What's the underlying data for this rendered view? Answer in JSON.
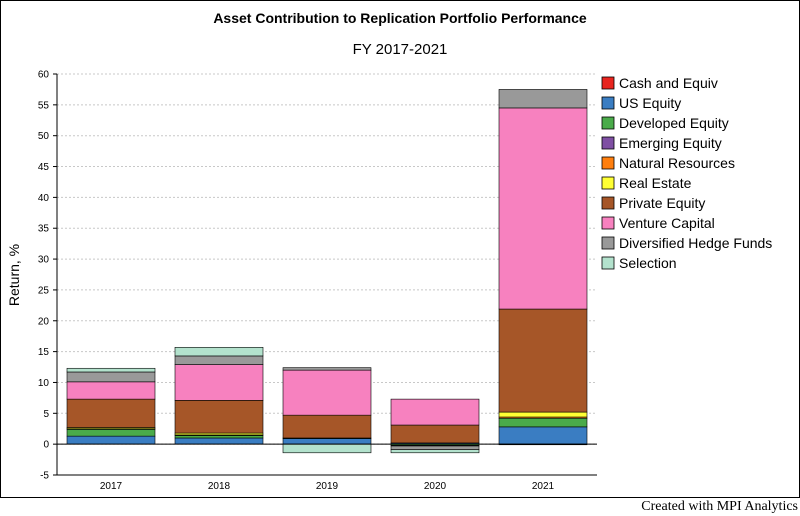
{
  "chart_data": {
    "type": "bar",
    "stacked": true,
    "title": "Asset Contribution to Replication Portfolio Performance",
    "subtitle": "FY 2017-2021",
    "xlabel": "",
    "ylabel": "Return, %",
    "ylim": [
      -5,
      60
    ],
    "yticks": [
      -5,
      0,
      5,
      10,
      15,
      20,
      25,
      30,
      35,
      40,
      45,
      50,
      55,
      60
    ],
    "grid": true,
    "legend_position": "right",
    "categories": [
      "2017",
      "2018",
      "2019",
      "2020",
      "2021"
    ],
    "series": [
      {
        "name": "Cash and Equiv",
        "color": "#e8251f",
        "values": [
          0,
          0,
          0,
          0,
          0
        ]
      },
      {
        "name": "US Equity",
        "color": "#3a7dc2",
        "values": [
          1.3,
          1.0,
          0.9,
          0.2,
          2.8
        ]
      },
      {
        "name": "Developed Equity",
        "color": "#4aab4a",
        "values": [
          1.1,
          0.4,
          0.1,
          -0.2,
          1.4
        ]
      },
      {
        "name": "Emerging Equity",
        "color": "#7f4fa3",
        "values": [
          0,
          0,
          0,
          -0.1,
          0
        ]
      },
      {
        "name": "Natural Resources",
        "color": "#ff7f0e",
        "values": [
          0.1,
          0.1,
          0,
          0,
          0.2
        ]
      },
      {
        "name": "Real Estate",
        "color": "#ffff33",
        "values": [
          0.2,
          0.3,
          0,
          0,
          0.8
        ]
      },
      {
        "name": "Private Equity",
        "color": "#a65628",
        "values": [
          4.6,
          5.3,
          3.7,
          2.9,
          16.7
        ]
      },
      {
        "name": "Venture Capital",
        "color": "#f781bf",
        "values": [
          2.8,
          5.8,
          7.3,
          4.2,
          32.6
        ]
      },
      {
        "name": "Diversified Hedge Funds",
        "color": "#999999",
        "values": [
          1.6,
          1.4,
          0.4,
          -0.6,
          3.0
        ]
      },
      {
        "name": "Selection",
        "color": "#b3e2cd",
        "values": [
          0.6,
          1.4,
          -1.4,
          -0.5,
          -0.1
        ]
      }
    ]
  },
  "footer": "Created with MPI Analytics"
}
